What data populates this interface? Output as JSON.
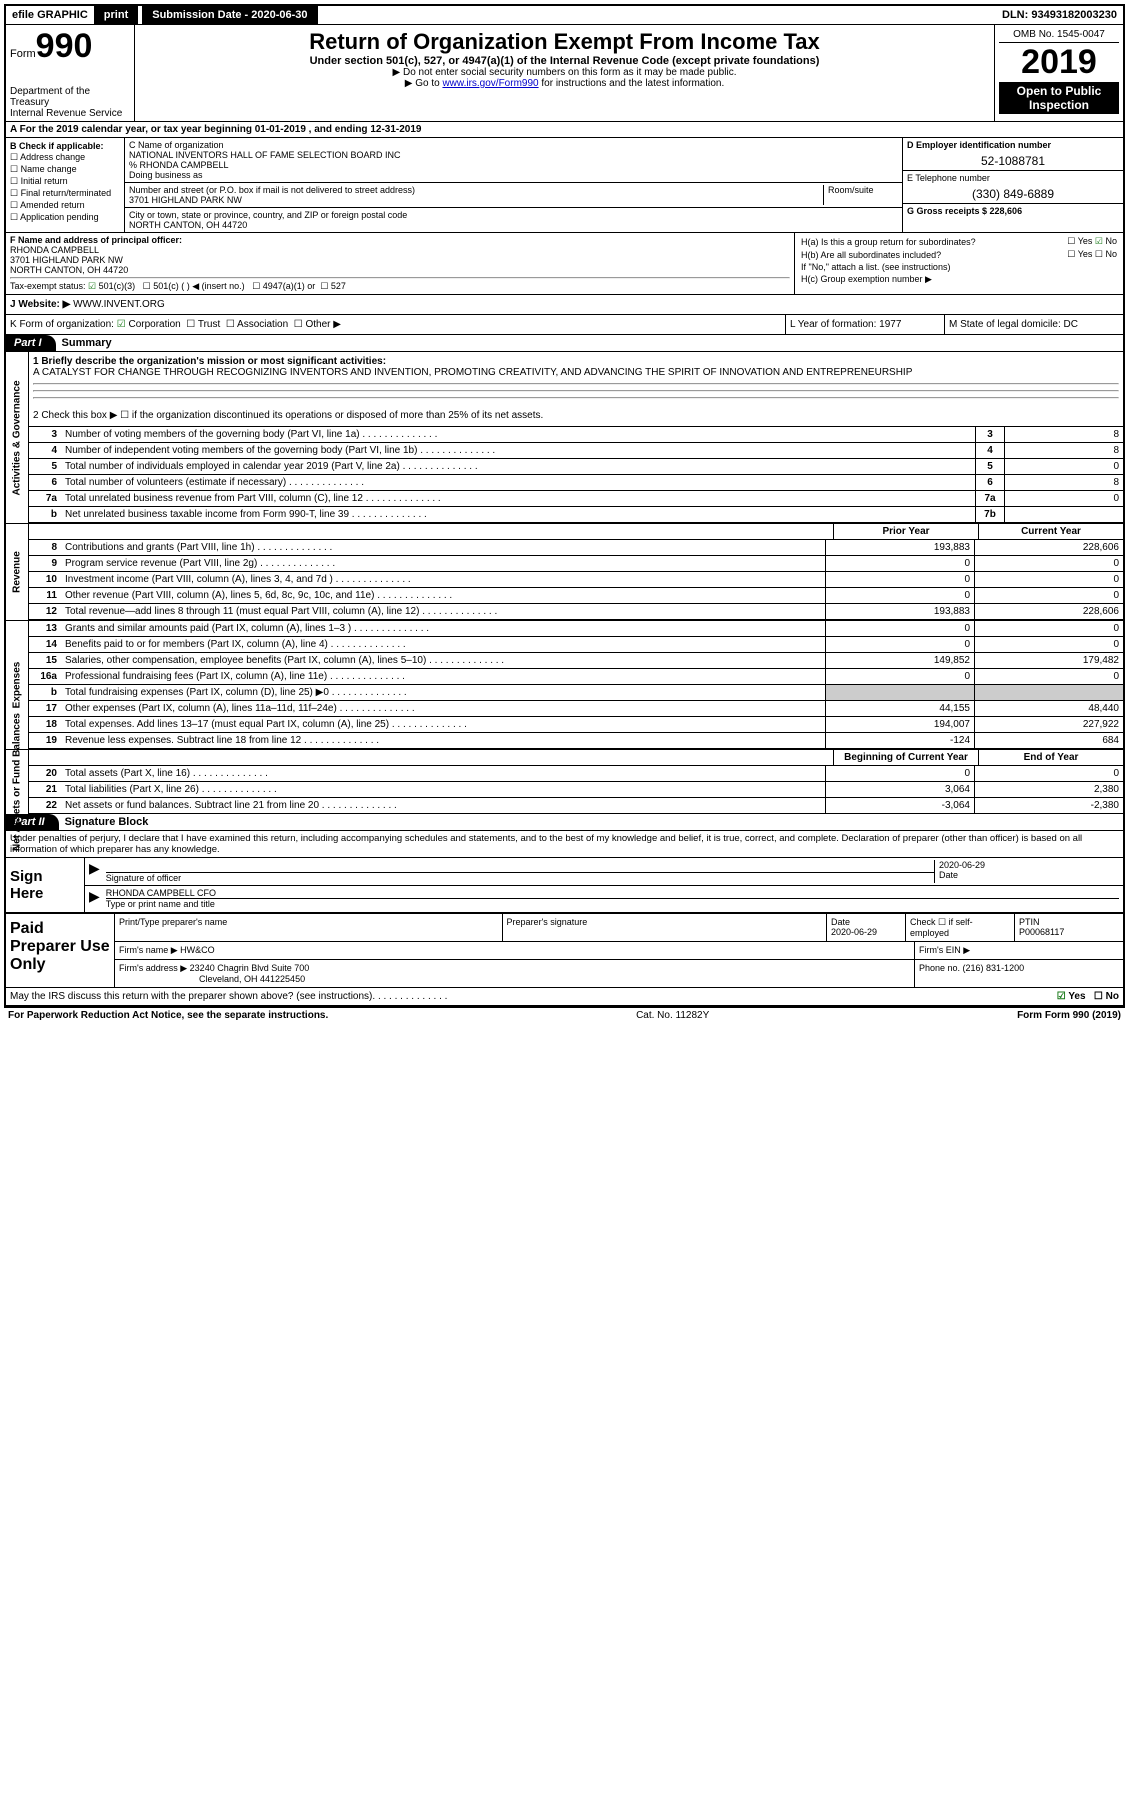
{
  "topbar": {
    "efile": "efile GRAPHIC",
    "print": "print",
    "submission_label": "Submission Date - 2020-06-30",
    "dln": "DLN: 93493182003230"
  },
  "header": {
    "form_prefix": "Form",
    "form_number": "990",
    "dept": "Department of the Treasury\nInternal Revenue Service",
    "title": "Return of Organization Exempt From Income Tax",
    "subtitle": "Under section 501(c), 527, or 4947(a)(1) of the Internal Revenue Code (except private foundations)",
    "note1": "▶ Do not enter social security numbers on this form as it may be made public.",
    "note2_pre": "▶ Go to ",
    "note2_link": "www.irs.gov/Form990",
    "note2_post": " for instructions and the latest information.",
    "omb": "OMB No. 1545-0047",
    "year": "2019",
    "inspect1": "Open to Public",
    "inspect2": "Inspection"
  },
  "line_a": "A For the 2019 calendar year, or tax year beginning 01-01-2019   , and ending 12-31-2019",
  "b": {
    "label": "B Check if applicable:",
    "opts": [
      "Address change",
      "Name change",
      "Initial return",
      "Final return/terminated",
      "Amended return",
      "Application pending"
    ]
  },
  "c": {
    "name_label": "C Name of organization",
    "name": "NATIONAL INVENTORS HALL OF FAME SELECTION BOARD INC",
    "care_of": "% RHONDA CAMPBELL",
    "dba_label": "Doing business as",
    "street_label": "Number and street (or P.O. box if mail is not delivered to street address)",
    "room_label": "Room/suite",
    "street": "3701 HIGHLAND PARK NW",
    "city_label": "City or town, state or province, country, and ZIP or foreign postal code",
    "city": "NORTH CANTON, OH  44720"
  },
  "d": {
    "label": "D Employer identification number",
    "val": "52-1088781"
  },
  "e": {
    "label": "E Telephone number",
    "val": "(330) 849-6889"
  },
  "g": {
    "label": "G Gross receipts $ 228,606"
  },
  "f": {
    "label": "F Name and address of principal officer:",
    "name": "RHONDA CAMPBELL",
    "addr1": "3701 HIGHLAND PARK NW",
    "addr2": "NORTH CANTON, OH  44720"
  },
  "h": {
    "a_label": "H(a)  Is this a group return for subordinates?",
    "a_yes": "Yes",
    "a_no": "No",
    "b_label": "H(b)  Are all subordinates included?",
    "b_note": "If \"No,\" attach a list. (see instructions)",
    "c_label": "H(c)  Group exemption number ▶"
  },
  "i": {
    "label": "Tax-exempt status:",
    "opts": [
      "501(c)(3)",
      "501(c) (  ) ◀ (insert no.)",
      "4947(a)(1) or",
      "527"
    ]
  },
  "j": {
    "label": "J   Website: ▶",
    "val": "WWW.INVENT.ORG"
  },
  "k": {
    "label": "K Form of organization:",
    "opts": [
      "Corporation",
      "Trust",
      "Association",
      "Other ▶"
    ]
  },
  "l": {
    "label": "L Year of formation: 1977"
  },
  "m": {
    "label": "M State of legal domicile: DC"
  },
  "part1": {
    "hdr": "Part I",
    "title": "Summary",
    "tab_gov": "Activities & Governance",
    "tab_rev": "Revenue",
    "tab_exp": "Expenses",
    "tab_net": "Net Assets or Fund Balances",
    "l1_label": "1  Briefly describe the organization's mission or most significant activities:",
    "l1_text": "A CATALYST FOR CHANGE THROUGH RECOGNIZING INVENTORS AND INVENTION, PROMOTING CREATIVITY, AND ADVANCING THE SPIRIT OF INNOVATION AND ENTREPRENEURSHIP",
    "l2": "2   Check this box ▶ ☐  if the organization discontinued its operations or disposed of more than 25% of its net assets.",
    "rows_gov": [
      {
        "n": "3",
        "d": "Number of voting members of the governing body (Part VI, line 1a)",
        "box": "3",
        "v": "8"
      },
      {
        "n": "4",
        "d": "Number of independent voting members of the governing body (Part VI, line 1b)",
        "box": "4",
        "v": "8"
      },
      {
        "n": "5",
        "d": "Total number of individuals employed in calendar year 2019 (Part V, line 2a)",
        "box": "5",
        "v": "0"
      },
      {
        "n": "6",
        "d": "Total number of volunteers (estimate if necessary)",
        "box": "6",
        "v": "8"
      },
      {
        "n": "7a",
        "d": "Total unrelated business revenue from Part VIII, column (C), line 12",
        "box": "7a",
        "v": "0"
      },
      {
        "n": "b",
        "d": "Net unrelated business taxable income from Form 990-T, line 39",
        "box": "7b",
        "v": ""
      }
    ],
    "hdr_prior": "Prior Year",
    "hdr_current": "Current Year",
    "rows_rev": [
      {
        "n": "8",
        "d": "Contributions and grants (Part VIII, line 1h)",
        "p": "193,883",
        "c": "228,606"
      },
      {
        "n": "9",
        "d": "Program service revenue (Part VIII, line 2g)",
        "p": "0",
        "c": "0"
      },
      {
        "n": "10",
        "d": "Investment income (Part VIII, column (A), lines 3, 4, and 7d )",
        "p": "0",
        "c": "0"
      },
      {
        "n": "11",
        "d": "Other revenue (Part VIII, column (A), lines 5, 6d, 8c, 9c, 10c, and 11e)",
        "p": "0",
        "c": "0"
      },
      {
        "n": "12",
        "d": "Total revenue—add lines 8 through 11 (must equal Part VIII, column (A), line 12)",
        "p": "193,883",
        "c": "228,606"
      }
    ],
    "rows_exp": [
      {
        "n": "13",
        "d": "Grants and similar amounts paid (Part IX, column (A), lines 1–3 )",
        "p": "0",
        "c": "0"
      },
      {
        "n": "14",
        "d": "Benefits paid to or for members (Part IX, column (A), line 4)",
        "p": "0",
        "c": "0"
      },
      {
        "n": "15",
        "d": "Salaries, other compensation, employee benefits (Part IX, column (A), lines 5–10)",
        "p": "149,852",
        "c": "179,482"
      },
      {
        "n": "16a",
        "d": "Professional fundraising fees (Part IX, column (A), line 11e)",
        "p": "0",
        "c": "0"
      },
      {
        "n": "b",
        "d": "Total fundraising expenses (Part IX, column (D), line 25) ▶0",
        "p": "",
        "c": "",
        "shade": true
      },
      {
        "n": "17",
        "d": "Other expenses (Part IX, column (A), lines 11a–11d, 11f–24e)",
        "p": "44,155",
        "c": "48,440"
      },
      {
        "n": "18",
        "d": "Total expenses. Add lines 13–17 (must equal Part IX, column (A), line 25)",
        "p": "194,007",
        "c": "227,922"
      },
      {
        "n": "19",
        "d": "Revenue less expenses. Subtract line 18 from line 12",
        "p": "-124",
        "c": "684"
      }
    ],
    "hdr_beg": "Beginning of Current Year",
    "hdr_end": "End of Year",
    "rows_net": [
      {
        "n": "20",
        "d": "Total assets (Part X, line 16)",
        "p": "0",
        "c": "0"
      },
      {
        "n": "21",
        "d": "Total liabilities (Part X, line 26)",
        "p": "3,064",
        "c": "2,380"
      },
      {
        "n": "22",
        "d": "Net assets or fund balances. Subtract line 21 from line 20",
        "p": "-3,064",
        "c": "-2,380"
      }
    ]
  },
  "part2": {
    "hdr": "Part II",
    "title": "Signature Block",
    "note": "Under penalties of perjury, I declare that I have examined this return, including accompanying schedules and statements, and to the best of my knowledge and belief, it is true, correct, and complete. Declaration of preparer (other than officer) is based on all information of which preparer has any knowledge.",
    "sign_label": "Sign Here",
    "sig_of_officer": "Signature of officer",
    "sig_date": "2020-06-29",
    "date_label": "Date",
    "officer_name": "RHONDA CAMPBELL  CFO",
    "type_label": "Type or print name and title",
    "paid_label": "Paid Preparer Use Only",
    "p_name_label": "Print/Type preparer's name",
    "p_sig_label": "Preparer's signature",
    "p_date_label": "Date",
    "p_date": "2020-06-29",
    "p_check_label": "Check ☐ if self-employed",
    "ptin_label": "PTIN",
    "ptin": "P00068117",
    "firm_name_label": "Firm's name    ▶",
    "firm_name": "HW&CO",
    "firm_ein_label": "Firm's EIN ▶",
    "firm_addr_label": "Firm's address ▶",
    "firm_addr1": "23240 Chagrin Blvd Suite 700",
    "firm_addr2": "Cleveland, OH  441225450",
    "phone_label": "Phone no. (216) 831-1200",
    "discuss": "May the IRS discuss this return with the preparer shown above? (see instructions)",
    "discuss_yes": "Yes",
    "discuss_no": "No"
  },
  "footer": {
    "paperwork": "For Paperwork Reduction Act Notice, see the separate instructions.",
    "cat": "Cat. No. 11282Y",
    "form": "Form 990 (2019)"
  }
}
